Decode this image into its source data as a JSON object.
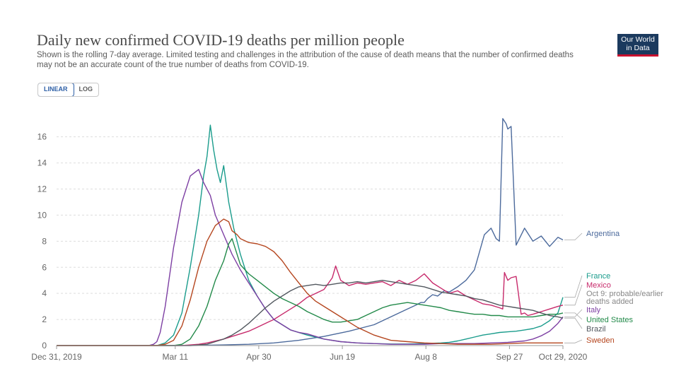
{
  "header": {
    "title": "Daily new confirmed COVID-19 deaths per million people",
    "subtitle": "Shown is the rolling 7-day average. Limited testing and challenges in the attribution of the cause of death means that the number of confirmed deaths may not be an accurate count of the true number of deaths from COVID-19."
  },
  "logo": {
    "line1": "Our World",
    "line2": "in Data"
  },
  "scale_toggle": {
    "linear": "LINEAR",
    "log": "LOG",
    "selected": "LINEAR"
  },
  "chart_data": {
    "type": "line",
    "title": "Daily new confirmed COVID-19 deaths per million people",
    "ylim": [
      0,
      17.5
    ],
    "yticks": [
      0,
      2,
      4,
      6,
      8,
      10,
      12,
      14,
      16
    ],
    "xlim": [
      "2019-12-31",
      "2020-10-29"
    ],
    "xtick_labels": [
      "Dec 31, 2019",
      "Mar 11",
      "Apr 30",
      "Jun 19",
      "Aug 8",
      "Sep 27",
      "Oct 29, 2020"
    ],
    "grid": "horizontal dashed",
    "series": [
      {
        "name": "Argentina",
        "color": "#4c6a9c",
        "x": [
          0,
          80,
          100,
          115,
          130,
          145,
          160,
          175,
          190,
          200,
          210,
          215,
          218,
          220,
          222,
          225,
          228,
          230,
          232,
          235,
          240,
          245,
          250,
          256,
          260,
          263,
          265,
          267,
          269,
          270,
          272,
          275,
          280,
          285,
          290,
          295,
          300,
          303
        ],
        "y": [
          0,
          0,
          0.05,
          0.1,
          0.2,
          0.4,
          0.7,
          1.1,
          1.6,
          2.2,
          2.8,
          3.1,
          3.3,
          3.3,
          3.6,
          3.9,
          3.8,
          4.0,
          4.2,
          4.1,
          4.5,
          5.0,
          5.8,
          8.5,
          9.0,
          8.2,
          8.0,
          17.4,
          17.0,
          16.6,
          16.8,
          7.7,
          9.0,
          8.0,
          8.4,
          7.6,
          8.3,
          8.1
        ]
      },
      {
        "name": "France",
        "color": "#1a9c8c",
        "x": [
          0,
          60,
          65,
          70,
          75,
          80,
          85,
          88,
          90,
          92,
          94,
          96,
          98,
          100,
          103,
          106,
          110,
          115,
          120,
          125,
          130,
          140,
          150,
          160,
          170,
          180,
          190,
          200,
          210,
          220,
          230,
          235,
          240,
          245,
          250,
          255,
          260,
          265,
          270,
          275,
          280,
          285,
          290,
          295,
          300,
          303
        ],
        "y": [
          0,
          0,
          0.2,
          0.8,
          2.5,
          6.0,
          10.0,
          13.0,
          14.5,
          16.9,
          15.0,
          13.5,
          12.5,
          13.8,
          11.0,
          9.0,
          7.0,
          5.0,
          3.8,
          2.8,
          2.0,
          1.2,
          0.8,
          0.5,
          0.3,
          0.2,
          0.15,
          0.12,
          0.12,
          0.15,
          0.2,
          0.25,
          0.35,
          0.5,
          0.65,
          0.8,
          0.9,
          1.0,
          1.05,
          1.1,
          1.2,
          1.3,
          1.5,
          1.9,
          2.5,
          3.7
        ]
      },
      {
        "name": "Mexico",
        "color": "#c72a6b",
        "x": [
          0,
          75,
          80,
          85,
          90,
          95,
          100,
          105,
          110,
          115,
          120,
          125,
          130,
          135,
          140,
          145,
          150,
          155,
          160,
          165,
          167,
          170,
          175,
          180,
          185,
          190,
          195,
          200,
          205,
          210,
          215,
          220,
          225,
          230,
          235,
          240,
          245,
          250,
          255,
          260,
          265,
          267,
          268,
          270,
          272,
          275,
          278,
          280,
          282,
          285,
          290,
          295,
          300,
          303
        ],
        "y": [
          0,
          0,
          0.05,
          0.1,
          0.2,
          0.35,
          0.5,
          0.7,
          0.9,
          1.1,
          1.4,
          1.7,
          2.0,
          2.4,
          2.8,
          3.2,
          3.7,
          4.0,
          4.3,
          5.2,
          6.1,
          5.0,
          4.6,
          4.8,
          4.7,
          4.8,
          4.9,
          4.6,
          5.0,
          4.7,
          5.0,
          5.5,
          4.8,
          4.4,
          4.0,
          4.2,
          3.8,
          3.5,
          3.2,
          3.1,
          2.9,
          2.8,
          5.6,
          5.0,
          5.2,
          5.3,
          2.4,
          2.5,
          2.3,
          2.4,
          2.6,
          2.8,
          3.0,
          3.1
        ]
      },
      {
        "name": "Italy",
        "color": "#7d3fa3",
        "x": [
          0,
          55,
          58,
          60,
          62,
          65,
          70,
          75,
          80,
          85,
          88,
          92,
          95,
          100,
          105,
          110,
          115,
          120,
          125,
          130,
          135,
          140,
          145,
          150,
          155,
          160,
          170,
          180,
          190,
          200,
          210,
          220,
          230,
          240,
          250,
          260,
          270,
          275,
          280,
          285,
          290,
          295,
          300,
          303
        ],
        "y": [
          0,
          0,
          0.1,
          0.3,
          1.0,
          3.0,
          7.5,
          11.0,
          13.0,
          13.5,
          12.5,
          11.5,
          10.0,
          8.5,
          7.0,
          5.8,
          4.8,
          3.8,
          2.8,
          2.0,
          1.6,
          1.2,
          1.0,
          0.9,
          0.7,
          0.5,
          0.3,
          0.2,
          0.15,
          0.1,
          0.1,
          0.1,
          0.15,
          0.15,
          0.15,
          0.2,
          0.25,
          0.3,
          0.35,
          0.5,
          0.75,
          1.1,
          1.7,
          2.2
        ]
      },
      {
        "name": "United States",
        "color": "#238a4a",
        "x": [
          0,
          70,
          75,
          80,
          85,
          90,
          95,
          100,
          103,
          105,
          108,
          110,
          115,
          120,
          125,
          130,
          135,
          140,
          145,
          150,
          155,
          160,
          165,
          170,
          175,
          180,
          185,
          190,
          195,
          200,
          205,
          210,
          215,
          220,
          225,
          230,
          235,
          240,
          245,
          250,
          255,
          260,
          265,
          270,
          275,
          280,
          285,
          290,
          295,
          300,
          303
        ],
        "y": [
          0,
          0,
          0.1,
          0.5,
          1.5,
          3.0,
          5.0,
          6.5,
          7.8,
          8.2,
          7.0,
          6.2,
          5.5,
          5.0,
          4.5,
          4.0,
          3.6,
          3.3,
          3.0,
          2.6,
          2.3,
          2.0,
          1.8,
          1.8,
          1.9,
          2.0,
          2.3,
          2.6,
          2.9,
          3.1,
          3.2,
          3.3,
          3.2,
          3.1,
          3.0,
          2.9,
          2.7,
          2.6,
          2.5,
          2.4,
          2.4,
          2.3,
          2.3,
          2.2,
          2.2,
          2.2,
          2.2,
          2.3,
          2.4,
          2.4,
          2.5
        ]
      },
      {
        "name": "Brazil",
        "color": "#52585f",
        "x": [
          0,
          80,
          85,
          90,
          95,
          100,
          105,
          110,
          115,
          120,
          125,
          130,
          135,
          140,
          145,
          150,
          155,
          160,
          165,
          170,
          175,
          180,
          185,
          190,
          195,
          200,
          205,
          210,
          215,
          220,
          225,
          230,
          235,
          240,
          245,
          250,
          255,
          260,
          265,
          270,
          275,
          280,
          285,
          290,
          295,
          300,
          303
        ],
        "y": [
          0,
          0,
          0.05,
          0.1,
          0.3,
          0.5,
          0.8,
          1.2,
          1.7,
          2.3,
          2.9,
          3.4,
          3.8,
          4.2,
          4.5,
          4.6,
          4.7,
          4.6,
          4.7,
          4.8,
          4.8,
          4.9,
          4.8,
          4.9,
          5.0,
          4.9,
          4.8,
          4.7,
          4.6,
          4.5,
          4.3,
          4.1,
          4.0,
          3.9,
          3.8,
          3.6,
          3.5,
          3.3,
          3.1,
          3.0,
          2.9,
          2.8,
          2.7,
          2.5,
          2.3,
          2.2,
          2.1
        ]
      },
      {
        "name": "Sweden",
        "color": "#b5461f",
        "x": [
          0,
          60,
          65,
          70,
          75,
          80,
          85,
          90,
          95,
          100,
          103,
          105,
          108,
          110,
          115,
          120,
          125,
          130,
          135,
          140,
          145,
          150,
          155,
          160,
          165,
          170,
          175,
          180,
          185,
          190,
          195,
          200,
          210,
          220,
          230,
          240,
          250,
          260,
          270,
          280,
          290,
          300,
          303
        ],
        "y": [
          0,
          0,
          0.1,
          0.4,
          1.5,
          3.5,
          6.0,
          8.0,
          9.2,
          9.7,
          9.5,
          8.8,
          8.5,
          8.2,
          7.9,
          7.8,
          7.6,
          7.2,
          6.5,
          5.6,
          4.8,
          4.0,
          3.4,
          3.0,
          2.6,
          2.2,
          1.8,
          1.4,
          1.1,
          0.8,
          0.6,
          0.4,
          0.3,
          0.2,
          0.15,
          0.1,
          0.1,
          0.1,
          0.15,
          0.2,
          0.2,
          0.2,
          0.2
        ]
      }
    ],
    "end_labels": [
      {
        "series": "Argentina",
        "text": "Argentina",
        "color": "#4c6a9c"
      },
      {
        "series": "France",
        "text": "France",
        "color": "#1a9c8c"
      },
      {
        "series": "Mexico",
        "text": "Mexico",
        "color": "#c72a6b"
      },
      {
        "series": "Mexico",
        "text": "Oct 9: probable/earlier",
        "color": "#888888"
      },
      {
        "series": "Mexico",
        "text": "deaths added",
        "color": "#888888"
      },
      {
        "series": "Italy",
        "text": "Italy",
        "color": "#7d3fa3"
      },
      {
        "series": "United States",
        "text": "United States",
        "color": "#238a4a"
      },
      {
        "series": "Brazil",
        "text": "Brazil",
        "color": "#52585f"
      },
      {
        "series": "Sweden",
        "text": "Sweden",
        "color": "#b5461f"
      }
    ]
  }
}
